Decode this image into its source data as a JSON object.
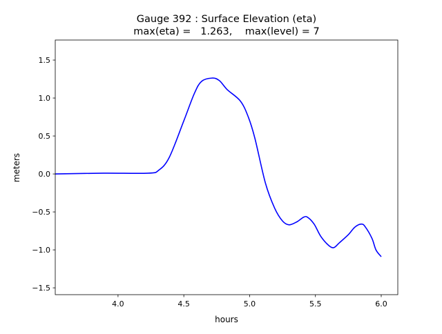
{
  "chart_data": {
    "type": "line",
    "title": "Gauge 392 : Surface Elevation (eta)",
    "subtitle": "max(eta) =   1.263,    max(level) = 7",
    "xlabel": "hours",
    "ylabel": "meters",
    "xlim": [
      3.523,
      6.126
    ],
    "ylim": [
      -1.59,
      1.764
    ],
    "xticks": [
      4.0,
      4.5,
      5.0,
      5.5,
      6.0
    ],
    "xtick_labels": [
      "4.0",
      "4.5",
      "5.0",
      "5.5",
      "6.0"
    ],
    "yticks": [
      1.5,
      1.0,
      0.5,
      0.0,
      -0.5,
      -1.0,
      -1.5
    ],
    "ytick_labels": [
      "1.5",
      "1.0",
      "0.5",
      "0.0",
      "−0.5",
      "−1.0",
      "−1.5"
    ],
    "grid": false,
    "series": [
      {
        "name": "eta",
        "color": "#0000ff",
        "x": [
          3.523,
          3.89,
          4.23,
          4.31,
          4.39,
          4.5,
          4.58,
          4.635,
          4.715,
          4.77,
          4.83,
          4.93,
          4.99,
          5.04,
          5.12,
          5.19,
          5.25,
          5.3,
          5.36,
          5.41,
          5.44,
          5.49,
          5.54,
          5.6,
          5.64,
          5.68,
          5.75,
          5.8,
          5.85,
          5.88,
          5.93,
          5.96,
          6.0
        ],
        "y": [
          0.0,
          0.01,
          0.01,
          0.05,
          0.22,
          0.7,
          1.06,
          1.22,
          1.263,
          1.23,
          1.11,
          0.96,
          0.75,
          0.47,
          -0.12,
          -0.45,
          -0.62,
          -0.67,
          -0.63,
          -0.57,
          -0.57,
          -0.66,
          -0.82,
          -0.94,
          -0.97,
          -0.91,
          -0.8,
          -0.7,
          -0.66,
          -0.7,
          -0.85,
          -1.0,
          -1.09
        ]
      }
    ]
  }
}
